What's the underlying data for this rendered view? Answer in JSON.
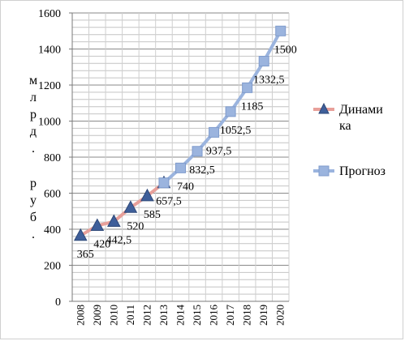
{
  "chart_data": {
    "type": "line",
    "title": "",
    "xlabel": "",
    "ylabel": "млрд. руб.",
    "ylim": [
      0,
      1600
    ],
    "yticks": [
      0,
      200,
      400,
      600,
      800,
      1000,
      1200,
      1400,
      1600
    ],
    "grid": true,
    "legend_position": "right",
    "categories": [
      "2008",
      "2009",
      "2010",
      "2011",
      "2012",
      "2013",
      "2014",
      "2015",
      "2016",
      "2017",
      "2018",
      "2019",
      "2020"
    ],
    "series": [
      {
        "name": "Динамика",
        "line_color": "#e8a09a",
        "marker": "triangle",
        "marker_color": "#3f5f9a",
        "values": [
          365,
          420,
          442.5,
          520,
          585,
          657.5,
          null,
          null,
          null,
          null,
          null,
          null,
          null
        ],
        "labels": [
          "365",
          "420",
          "442,5",
          "520",
          "585",
          "",
          "",
          "",
          "",
          "",
          "",
          "",
          ""
        ]
      },
      {
        "name": "Прогноз",
        "line_color": "#9bb4de",
        "marker": "square",
        "marker_color": "#9bb4de",
        "values": [
          null,
          null,
          null,
          null,
          null,
          657.5,
          740,
          832.5,
          937.5,
          1052.5,
          1185,
          1332.5,
          1500
        ],
        "labels": [
          "",
          "",
          "",
          "",
          "",
          "657,5",
          "740",
          "832,5",
          "937,5",
          "1052,5",
          "1185",
          "1332,5",
          "1500"
        ]
      }
    ]
  }
}
